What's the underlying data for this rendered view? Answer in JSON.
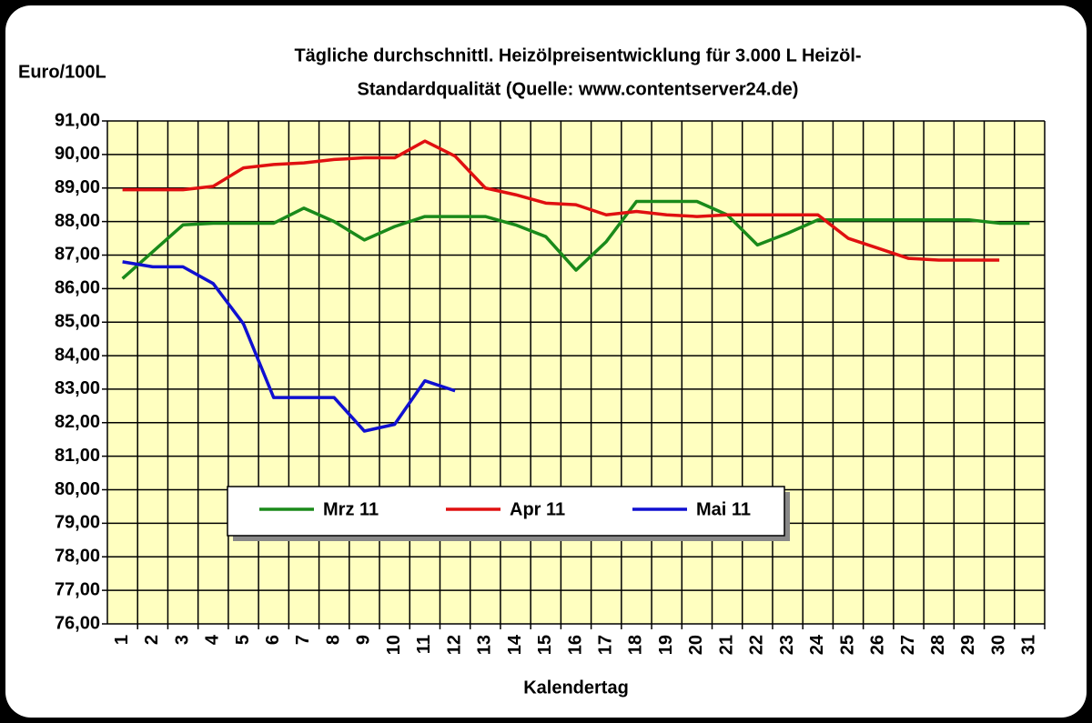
{
  "chart_data": {
    "type": "line",
    "title": [
      "Tägliche durchschnittl. Heizölpreisentwicklung für 3.000 L Heizöl-",
      "Standardqualität (Quelle: www.contentserver24.de)"
    ],
    "y_label": "Euro/100L",
    "x_label": "Kalendertag",
    "categories": [
      "1",
      "2",
      "3",
      "4",
      "5",
      "6",
      "7",
      "8",
      "9",
      "10",
      "11",
      "12",
      "13",
      "14",
      "15",
      "16",
      "17",
      "18",
      "19",
      "20",
      "21",
      "22",
      "23",
      "24",
      "25",
      "26",
      "27",
      "28",
      "29",
      "30",
      "31"
    ],
    "series": [
      {
        "name": "Mrz 11",
        "color": "#1a8a1a",
        "values": [
          86.3,
          87.1,
          87.9,
          87.95,
          87.95,
          87.95,
          88.4,
          88.0,
          87.45,
          87.85,
          88.15,
          88.15,
          88.15,
          87.9,
          87.55,
          86.55,
          87.4,
          88.6,
          88.6,
          88.6,
          88.2,
          87.3,
          87.65,
          88.05,
          88.05,
          88.05,
          88.05,
          88.05,
          88.05,
          87.95,
          87.95
        ]
      },
      {
        "name": "Apr 11",
        "color": "#e01010",
        "values": [
          88.95,
          88.95,
          88.95,
          89.05,
          89.6,
          89.7,
          89.75,
          89.85,
          89.9,
          89.9,
          90.4,
          89.95,
          89.0,
          88.8,
          88.55,
          88.5,
          88.2,
          88.3,
          88.2,
          88.15,
          88.2,
          88.2,
          88.2,
          88.2,
          87.5,
          87.2,
          86.9,
          86.85,
          86.85,
          86.85,
          null
        ]
      },
      {
        "name": "Mai 11",
        "color": "#1010d0",
        "values": [
          86.8,
          86.65,
          86.65,
          86.15,
          84.95,
          82.75,
          82.75,
          82.75,
          81.75,
          81.95,
          83.25,
          82.95,
          null,
          null,
          null,
          null,
          null,
          null,
          null,
          null,
          null,
          null,
          null,
          null,
          null,
          null,
          null,
          null,
          null,
          null,
          null
        ]
      }
    ],
    "ylim": [
      76,
      91
    ],
    "yticks": [
      {
        "value": 76,
        "label": "76,00"
      },
      {
        "value": 77,
        "label": "77,00"
      },
      {
        "value": 78,
        "label": "78,00"
      },
      {
        "value": 79,
        "label": "79,00"
      },
      {
        "value": 80,
        "label": "80,00"
      },
      {
        "value": 81,
        "label": "81,00"
      },
      {
        "value": 82,
        "label": "82,00"
      },
      {
        "value": 83,
        "label": "83,00"
      },
      {
        "value": 84,
        "label": "84,00"
      },
      {
        "value": 85,
        "label": "85,00"
      },
      {
        "value": 86,
        "label": "86,00"
      },
      {
        "value": 87,
        "label": "87,00"
      },
      {
        "value": 88,
        "label": "88,00"
      },
      {
        "value": 89,
        "label": "89,00"
      },
      {
        "value": 90,
        "label": "90,00"
      },
      {
        "value": 91,
        "label": "91,00"
      }
    ],
    "grid": true
  }
}
